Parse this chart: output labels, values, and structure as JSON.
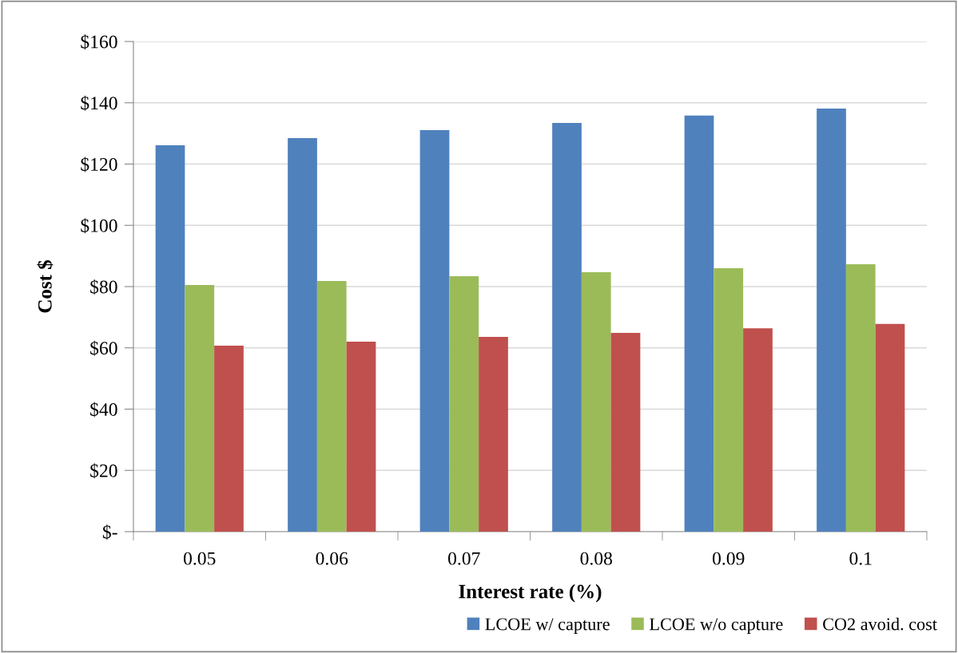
{
  "chart_data": {
    "type": "bar",
    "xlabel": "Interest rate (%)",
    "ylabel": "Cost $",
    "categories": [
      "0.05",
      "0.06",
      "0.07",
      "0.08",
      "0.09",
      "0.1"
    ],
    "series": [
      {
        "name": "LCOE w/ capture",
        "color": "#4f81bd",
        "values": [
          126.1,
          128.5,
          131.1,
          133.4,
          135.8,
          138.1
        ]
      },
      {
        "name": "LCOE w/o capture",
        "color": "#9bbb59",
        "values": [
          80.5,
          81.8,
          83.4,
          84.7,
          86.0,
          87.3
        ]
      },
      {
        "name": "CO2 avoid. cost",
        "color": "#c0504d",
        "values": [
          60.7,
          62.0,
          63.6,
          64.9,
          66.4,
          67.8
        ]
      }
    ],
    "ylim": [
      0,
      160
    ],
    "yticks": [
      {
        "value": 0,
        "label": "$-"
      },
      {
        "value": 20,
        "label": "$20"
      },
      {
        "value": 40,
        "label": "$40"
      },
      {
        "value": 60,
        "label": "$60"
      },
      {
        "value": 80,
        "label": "$80"
      },
      {
        "value": 100,
        "label": "$100"
      },
      {
        "value": 120,
        "label": "$120"
      },
      {
        "value": 140,
        "label": "$140"
      },
      {
        "value": 160,
        "label": "$160"
      }
    ],
    "grid": "y",
    "legend": "bottom right"
  }
}
